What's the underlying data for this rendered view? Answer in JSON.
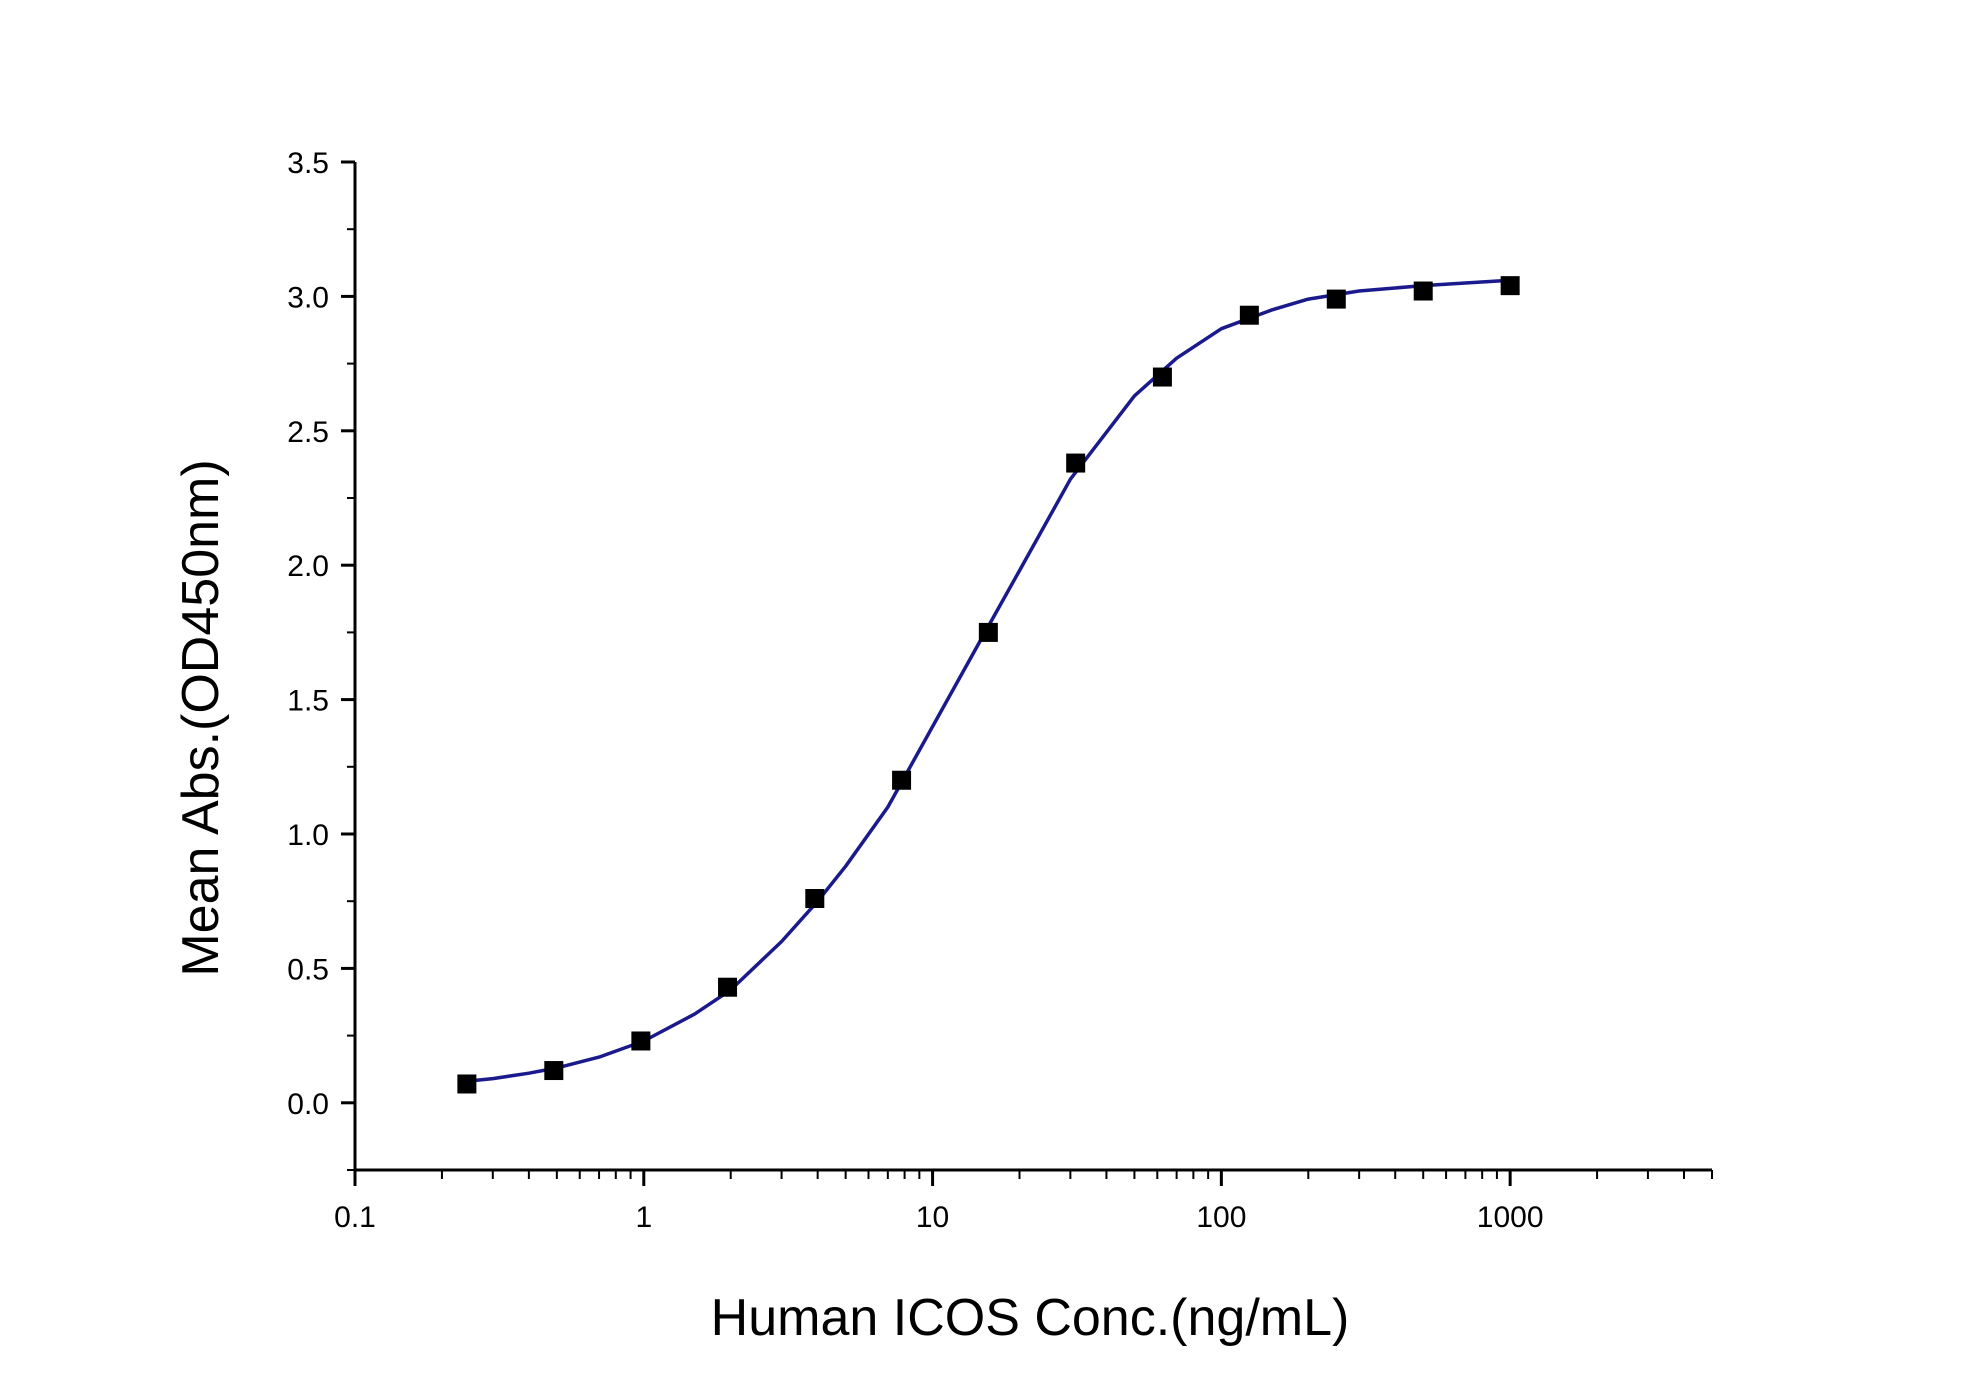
{
  "chart_data": {
    "type": "scatter",
    "title": "",
    "xlabel": "Human ICOS Conc.(ng/mL)",
    "ylabel": "Mean Abs.(OD450nm)",
    "x_scale": "log",
    "xlim": [
      0.1,
      5000
    ],
    "ylim": [
      -0.25,
      3.5
    ],
    "x_tick_values": [
      0.1,
      1,
      10,
      100,
      1000
    ],
    "x_tick_labels": [
      "0.1",
      "1",
      "10",
      "100",
      "1000"
    ],
    "y_tick_values": [
      0.0,
      0.5,
      1.0,
      1.5,
      2.0,
      2.5,
      3.0,
      3.5
    ],
    "y_tick_labels": [
      "0.0",
      "0.5",
      "1.0",
      "1.5",
      "2.0",
      "2.5",
      "3.0",
      "3.5"
    ],
    "grid": false,
    "legend": "none",
    "series": [
      {
        "kind": "points",
        "marker": "square",
        "color": "#000000",
        "x": [
          0.244,
          0.488,
          0.977,
          1.95,
          3.91,
          7.81,
          15.6,
          31.3,
          62.5,
          125,
          250,
          500,
          1000
        ],
        "y": [
          0.07,
          0.12,
          0.23,
          0.43,
          0.76,
          1.2,
          1.75,
          2.38,
          2.7,
          2.93,
          2.99,
          3.02,
          3.04
        ]
      },
      {
        "kind": "fit-curve",
        "color": "#1a1a8c",
        "x": [
          0.244,
          0.3,
          0.4,
          0.5,
          0.7,
          1.0,
          1.5,
          2.0,
          3.0,
          4.0,
          5.0,
          7.0,
          10,
          15,
          20,
          30,
          50,
          70,
          100,
          150,
          200,
          300,
          500,
          700,
          1000
        ],
        "y": [
          0.08,
          0.09,
          0.11,
          0.13,
          0.17,
          0.23,
          0.33,
          0.42,
          0.6,
          0.75,
          0.88,
          1.1,
          1.4,
          1.74,
          1.98,
          2.32,
          2.63,
          2.77,
          2.88,
          2.95,
          2.99,
          3.02,
          3.04,
          3.05,
          3.06
        ]
      }
    ]
  }
}
